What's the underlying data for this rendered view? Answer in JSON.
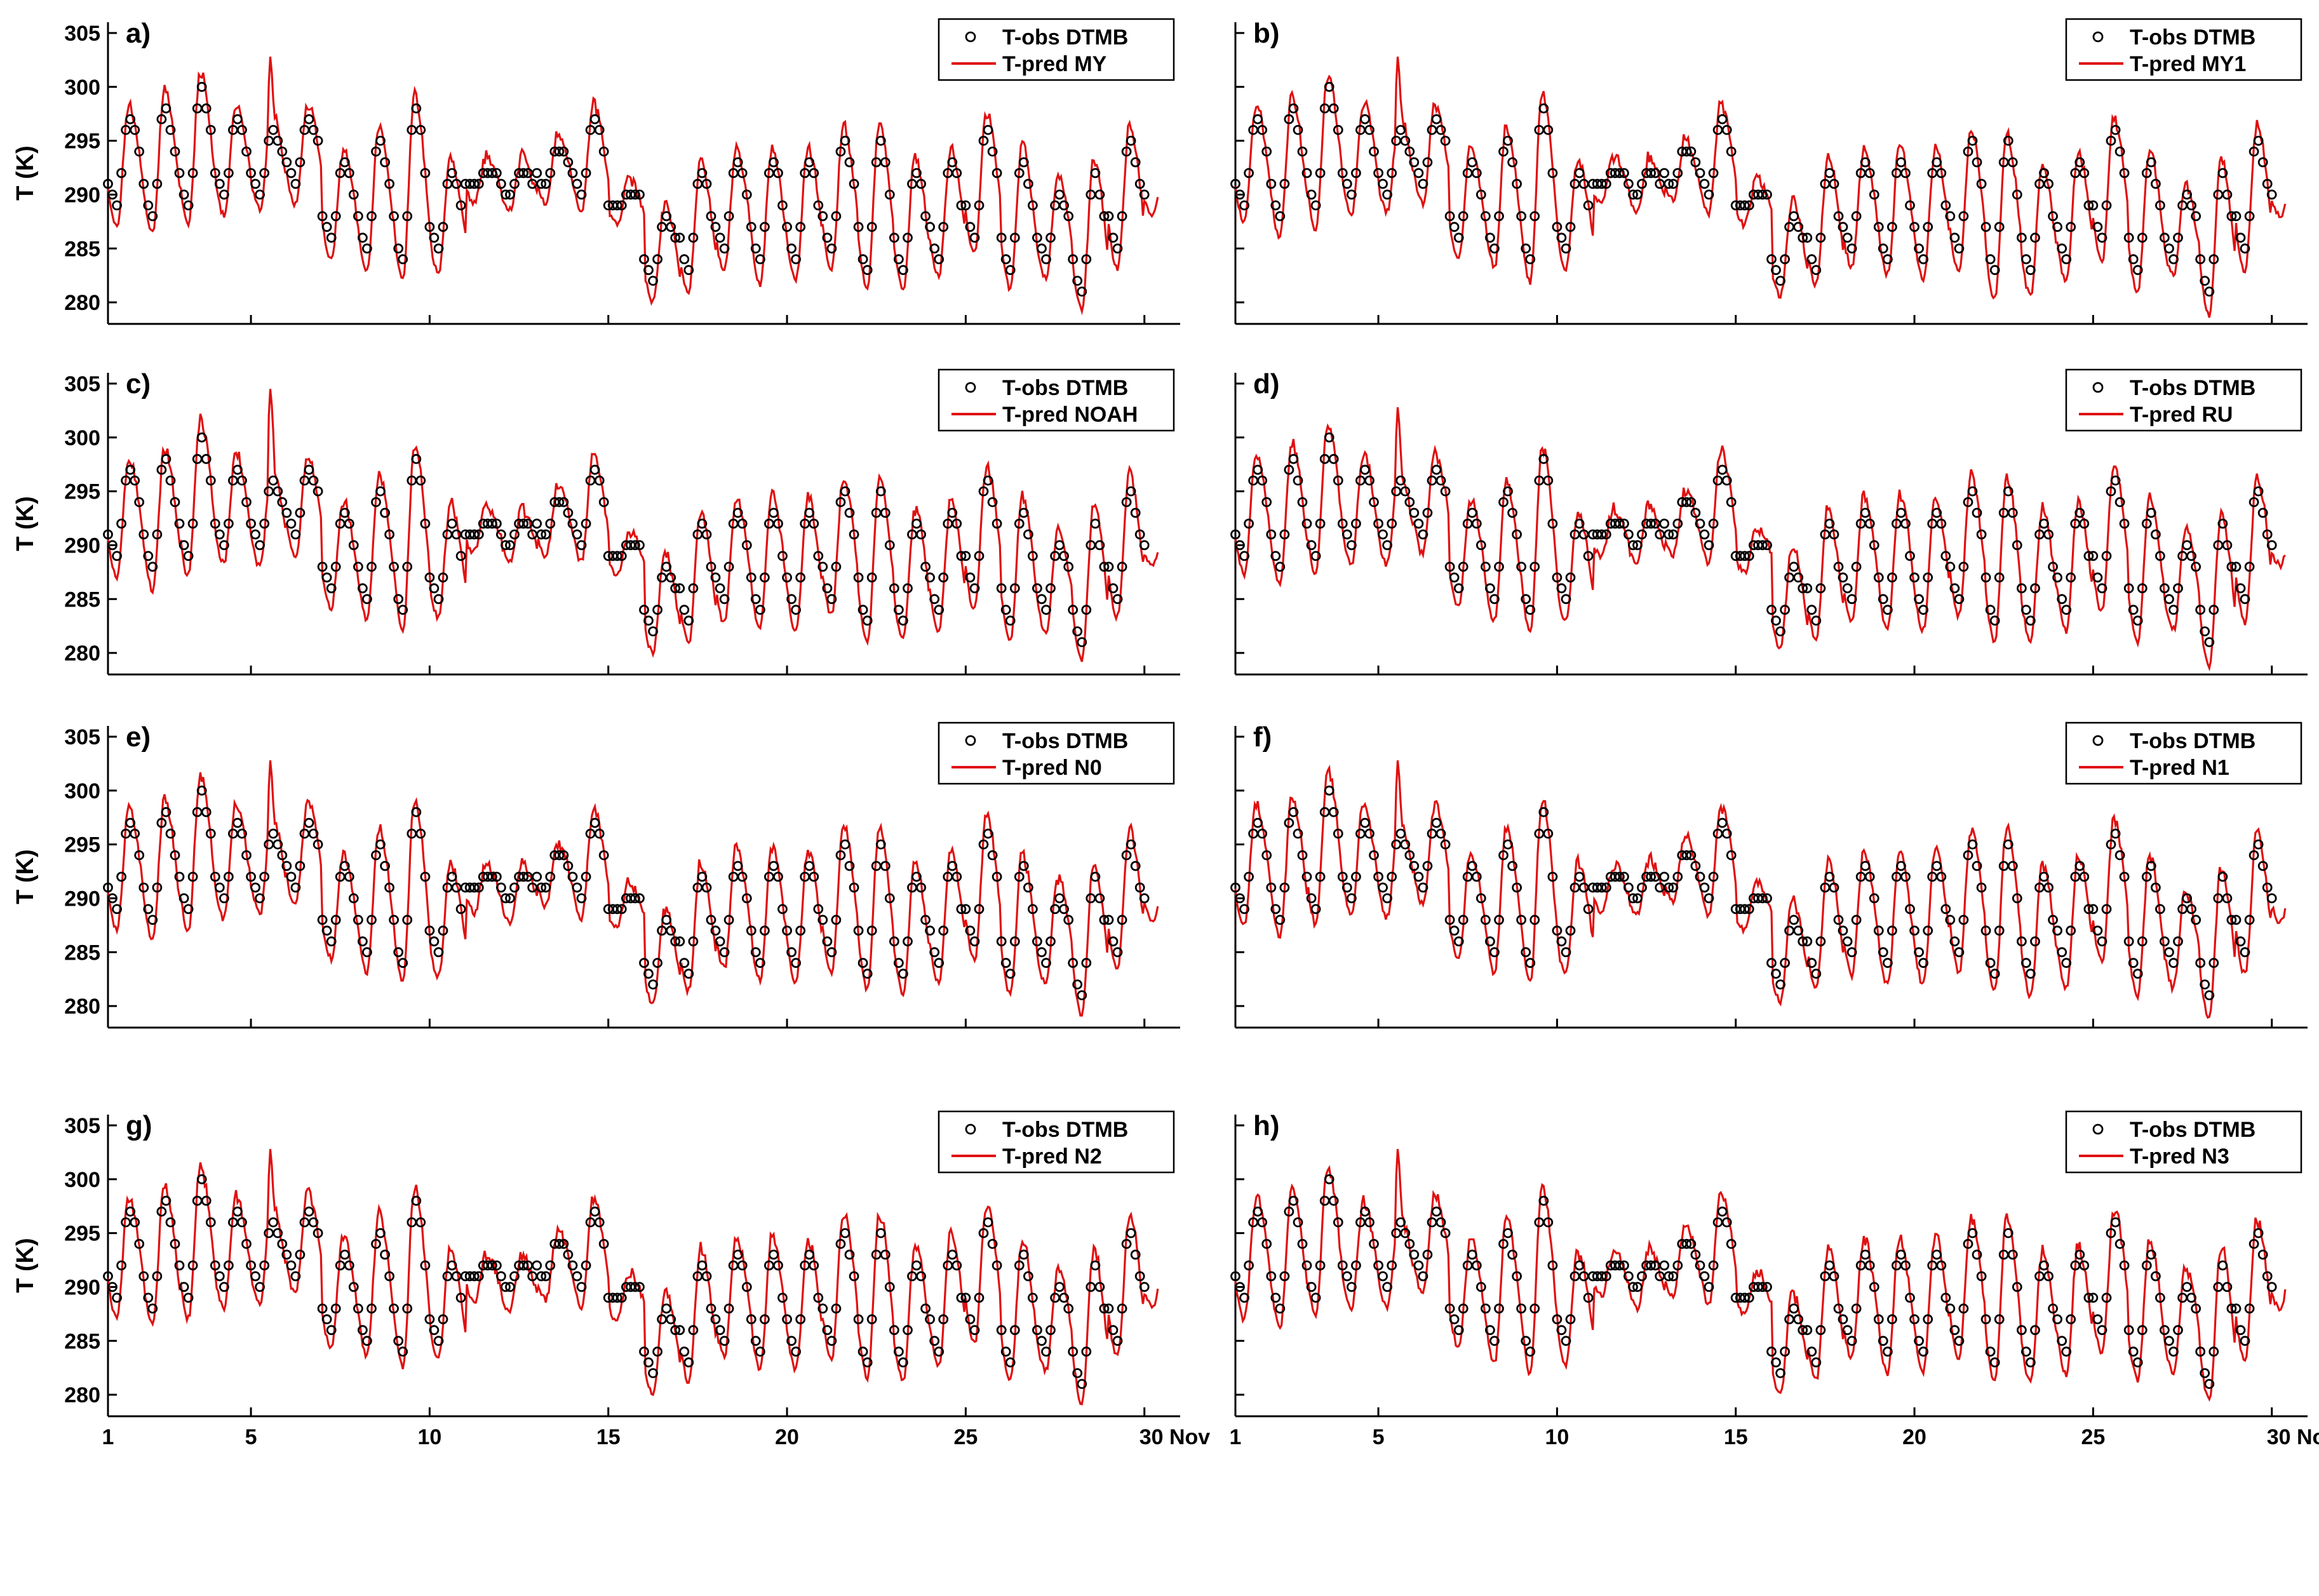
{
  "chart_data": [
    {
      "type": "line",
      "label": "a)",
      "ylabel": "T (K)",
      "yticks": [
        "305",
        "300",
        "295",
        "290",
        "285",
        "280"
      ],
      "ylim": [
        278,
        306
      ],
      "xlim": [
        1,
        31
      ],
      "legend": {
        "obs": "T-obs DTMB",
        "pred": "T-pred MY",
        "placement": "top-right"
      },
      "series": {
        "obs_seed": 1,
        "pred_seed": 11,
        "colors": {
          "obs": "#000000",
          "pred": "#e01010"
        }
      }
    },
    {
      "type": "line",
      "label": "b)",
      "ylabel": "",
      "yticks": [],
      "ylim": [
        278,
        306
      ],
      "xlim": [
        1,
        31
      ],
      "legend": {
        "obs": "T-obs DTMB",
        "pred": "T-pred MY1",
        "placement": "top-right"
      },
      "series": {
        "obs_seed": 1,
        "pred_seed": 12,
        "colors": {
          "obs": "#000000",
          "pred": "#e01010"
        }
      }
    },
    {
      "type": "line",
      "label": "c)",
      "ylabel": "T (K)",
      "yticks": [
        "305",
        "300",
        "295",
        "290",
        "285",
        "280"
      ],
      "ylim": [
        278,
        306
      ],
      "xlim": [
        1,
        31
      ],
      "legend": {
        "obs": "T-obs DTMB",
        "pred": "T-pred NOAH",
        "placement": "top-right"
      },
      "series": {
        "obs_seed": 1,
        "pred_seed": 13,
        "colors": {
          "obs": "#000000",
          "pred": "#e01010"
        }
      }
    },
    {
      "type": "line",
      "label": "d)",
      "ylabel": "",
      "yticks": [],
      "ylim": [
        278,
        306
      ],
      "xlim": [
        1,
        31
      ],
      "legend": {
        "obs": "T-obs DTMB",
        "pred": "T-pred RU",
        "placement": "top-right"
      },
      "series": {
        "obs_seed": 1,
        "pred_seed": 14,
        "colors": {
          "obs": "#000000",
          "pred": "#e01010"
        }
      }
    },
    {
      "type": "line",
      "label": "e)",
      "ylabel": "T (K)",
      "yticks": [
        "305",
        "300",
        "295",
        "290",
        "285",
        "280"
      ],
      "ylim": [
        278,
        306
      ],
      "xlim": [
        1,
        31
      ],
      "legend": {
        "obs": "T-obs DTMB",
        "pred": "T-pred N0",
        "placement": "top-right"
      },
      "series": {
        "obs_seed": 1,
        "pred_seed": 15,
        "colors": {
          "obs": "#000000",
          "pred": "#e01010"
        }
      }
    },
    {
      "type": "line",
      "label": "f)",
      "ylabel": "",
      "yticks": [],
      "ylim": [
        278,
        306
      ],
      "xlim": [
        1,
        31
      ],
      "legend": {
        "obs": "T-obs DTMB",
        "pred": "T-pred N1",
        "placement": "top-right"
      },
      "series": {
        "obs_seed": 1,
        "pred_seed": 16,
        "colors": {
          "obs": "#000000",
          "pred": "#e01010"
        }
      }
    },
    {
      "type": "line",
      "label": "g)",
      "ylabel": "T (K)",
      "yticks": [
        "305",
        "300",
        "295",
        "290",
        "285",
        "280"
      ],
      "ylim": [
        278,
        306
      ],
      "xlim": [
        1,
        31
      ],
      "legend": {
        "obs": "T-obs DTMB",
        "pred": "T-pred N2",
        "placement": "top-right"
      },
      "series": {
        "obs_seed": 1,
        "pred_seed": 17,
        "colors": {
          "obs": "#000000",
          "pred": "#e01010"
        }
      }
    },
    {
      "type": "line",
      "label": "h)",
      "ylabel": "",
      "yticks": [],
      "ylim": [
        278,
        306
      ],
      "xlim": [
        1,
        31
      ],
      "legend": {
        "obs": "T-obs DTMB",
        "pred": "T-pred N3",
        "placement": "top-right"
      },
      "series": {
        "obs_seed": 1,
        "pred_seed": 18,
        "colors": {
          "obs": "#000000",
          "pred": "#e01010"
        }
      }
    }
  ],
  "xaxis": {
    "ticks": [
      1,
      5,
      10,
      15,
      20,
      25,
      30
    ],
    "tick_labels": [
      "1",
      "5",
      "10",
      "15",
      "20",
      "25",
      "30 Nov"
    ]
  },
  "daily_obs_K": {
    "min": [
      289,
      288,
      289,
      290,
      290,
      291,
      286,
      285,
      284,
      285,
      291,
      290,
      291,
      290,
      289,
      282,
      283,
      285,
      284,
      284,
      285,
      283,
      283,
      284,
      286,
      283,
      284,
      281,
      285,
      290
    ],
    "max": [
      297,
      298,
      300,
      297,
      296,
      297,
      293,
      295,
      298,
      292,
      292,
      292,
      294,
      297,
      290,
      288,
      292,
      293,
      293,
      293,
      295,
      295,
      292,
      293,
      296,
      293,
      290,
      292,
      295,
      291
    ]
  },
  "peak_pred_K": {
    "MY": 303.3,
    "NOAH": 305.0
  }
}
